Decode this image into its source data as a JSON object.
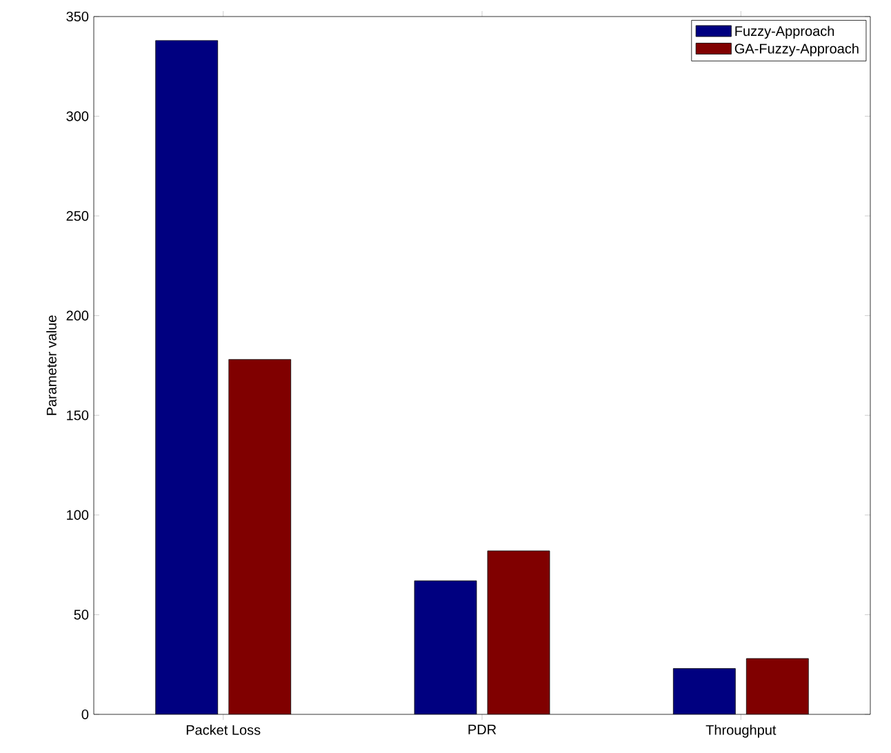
{
  "chart_data": {
    "type": "bar",
    "ylabel": "Parameter value",
    "categories": [
      "Packet Loss",
      "PDR",
      "Throughput"
    ],
    "series": [
      {
        "name": "Fuzzy-Approach",
        "color": "#000080",
        "values": [
          338,
          67,
          23
        ]
      },
      {
        "name": "GA-Fuzzy-Approach",
        "color": "#800000",
        "values": [
          178,
          82,
          28
        ]
      }
    ],
    "ylim": [
      0,
      350
    ],
    "yticks": [
      0,
      50,
      100,
      150,
      200,
      250,
      300,
      350
    ],
    "grid": false,
    "legend": "top right"
  }
}
